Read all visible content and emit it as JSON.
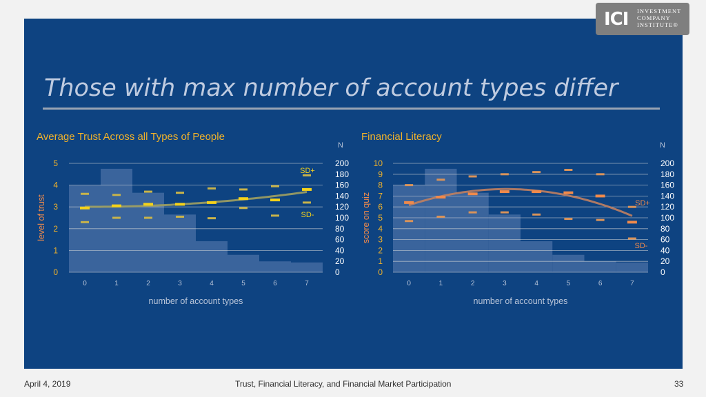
{
  "slide": {
    "title": "Those with max number of account types differ",
    "footer_date": "April 4, 2019",
    "footer_title": "Trust, Financial Literacy, and Financial Market Participation",
    "page_number": "33",
    "logo_mark": "ICI",
    "logo_lines": [
      "INVESTMENT",
      "COMPANY",
      "INSTITUTE®"
    ]
  },
  "colors": {
    "panel": "#0e4381",
    "title": "#bfcbe0",
    "chart_title": "#f0b22a",
    "bars": "#4a6fa5",
    "trust_mean": "#f5d21a",
    "trust_sd": "#c9b44a",
    "lit_mean": "#f08a4b",
    "lit_sd": "#d9935a",
    "trend_trust": "#a0a060",
    "trend_lit": "#c08060"
  },
  "chart_data": [
    {
      "type": "bar",
      "title": "Average Trust Across all Types of People",
      "xlabel": "number of account types",
      "ylabel": "level of trust",
      "y2label": "N",
      "categories": [
        0,
        1,
        2,
        3,
        4,
        5,
        6,
        7
      ],
      "ylim": [
        0,
        5
      ],
      "y2lim": [
        0,
        200
      ],
      "yticks": [
        0,
        1,
        2,
        3,
        4,
        5
      ],
      "y2ticks": [
        0,
        20,
        40,
        60,
        80,
        100,
        120,
        140,
        160,
        180,
        200
      ],
      "grid": true,
      "series": [
        {
          "name": "N",
          "axis": "right",
          "kind": "bar",
          "values": [
            160,
            190,
            146,
            106,
            57,
            32,
            20,
            18
          ]
        },
        {
          "name": "mean",
          "axis": "left",
          "kind": "marker",
          "values": [
            2.95,
            3.05,
            3.12,
            3.12,
            3.2,
            3.38,
            3.32,
            3.8
          ]
        },
        {
          "name": "SD+",
          "axis": "left",
          "kind": "marker",
          "values": [
            3.6,
            3.55,
            3.7,
            3.65,
            3.85,
            3.8,
            3.95,
            4.45
          ]
        },
        {
          "name": "SD-",
          "axis": "left",
          "kind": "marker",
          "values": [
            2.3,
            2.5,
            2.5,
            2.55,
            2.48,
            2.95,
            2.6,
            3.2
          ]
        }
      ],
      "annotations": [
        "SD+",
        "SD-"
      ]
    },
    {
      "type": "bar",
      "title": "Financial Literacy",
      "xlabel": "number of account types",
      "ylabel": "score on quiz",
      "y2label": "N",
      "categories": [
        0,
        1,
        2,
        3,
        4,
        5,
        6,
        7
      ],
      "ylim": [
        0,
        10
      ],
      "y2lim": [
        0,
        200
      ],
      "yticks": [
        0,
        1,
        2,
        3,
        4,
        5,
        6,
        7,
        8,
        9,
        10
      ],
      "y2ticks": [
        0,
        20,
        40,
        60,
        80,
        100,
        120,
        140,
        160,
        180,
        200
      ],
      "grid": true,
      "series": [
        {
          "name": "N",
          "axis": "right",
          "kind": "bar",
          "values": [
            160,
            190,
            146,
            106,
            57,
            32,
            20,
            18
          ]
        },
        {
          "name": "mean",
          "axis": "left",
          "kind": "marker",
          "values": [
            6.4,
            6.9,
            7.2,
            7.4,
            7.4,
            7.3,
            7.0,
            4.6
          ]
        },
        {
          "name": "SD+",
          "axis": "left",
          "kind": "marker",
          "values": [
            8.0,
            8.5,
            8.8,
            9.0,
            9.2,
            9.4,
            9.0,
            6.0
          ]
        },
        {
          "name": "SD-",
          "axis": "left",
          "kind": "marker",
          "values": [
            4.7,
            5.1,
            5.5,
            5.5,
            5.3,
            4.9,
            4.8,
            3.1
          ]
        }
      ],
      "annotations": [
        "SD+",
        "SD-"
      ]
    }
  ]
}
